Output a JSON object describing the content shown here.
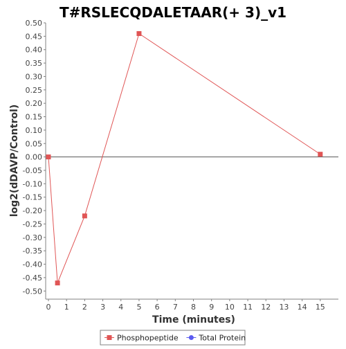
{
  "chart_data": {
    "type": "line",
    "title": "T#RSLECQDALETAAR(+ 3)_v1",
    "xlabel": "Time (minutes)",
    "ylabel": "log2(dDAVP/Control)",
    "xlim": [
      0,
      16
    ],
    "ylim": [
      -0.52,
      0.5
    ],
    "x_ticks": [
      0,
      1,
      2,
      3,
      4,
      5,
      6,
      7,
      8,
      9,
      10,
      11,
      12,
      13,
      14,
      15
    ],
    "y_ticks": [
      -0.5,
      -0.45,
      -0.4,
      -0.35,
      -0.3,
      -0.25,
      -0.2,
      -0.15,
      -0.1,
      -0.05,
      0.0,
      0.05,
      0.1,
      0.15,
      0.2,
      0.25,
      0.3,
      0.35,
      0.4,
      0.45,
      0.5
    ],
    "grid": false,
    "zero_line": true,
    "legend_position": "bottom",
    "series": [
      {
        "name": "Phosphopeptide",
        "color": "#e05555",
        "marker": "square",
        "points": [
          {
            "x": 0,
            "y": 0.0
          },
          {
            "x": 0.5,
            "y": -0.47
          },
          {
            "x": 2,
            "y": -0.22
          },
          {
            "x": 5,
            "y": 0.46
          },
          {
            "x": 15,
            "y": 0.01
          }
        ]
      },
      {
        "name": "Total Protein",
        "color": "#5b5bf0",
        "marker": "circle",
        "points": []
      }
    ]
  }
}
